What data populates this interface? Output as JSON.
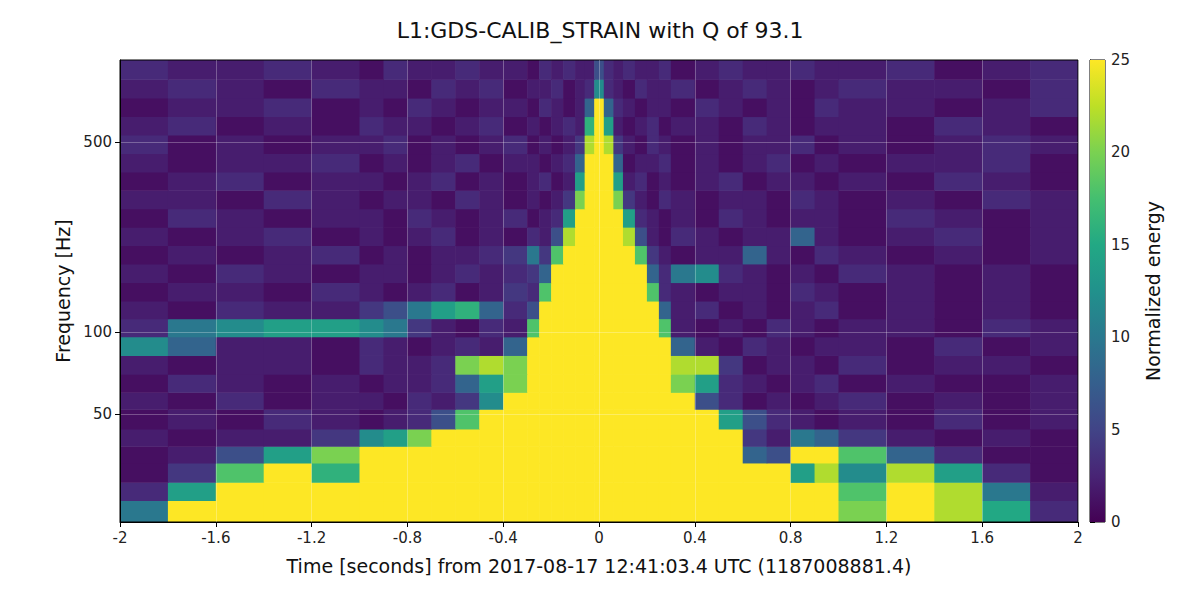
{
  "chart_data": {
    "type": "heatmap",
    "title": "L1:GDS-CALIB_STRAIN with Q of 93.1",
    "x_label": "Time [seconds] from 2017-08-17 12:41:03.4 UTC (1187008881.4)",
    "y_label": "Frequency [Hz]",
    "log": "y",
    "grid": true,
    "xlim": [
      -2,
      2
    ],
    "xticks": [
      -2,
      -1.6,
      -1.2,
      -0.8,
      -0.4,
      0,
      0.4,
      0.8,
      1.2,
      1.6,
      2
    ],
    "ylim": [
      20,
      1000
    ],
    "yticks": [
      50,
      100,
      500
    ],
    "x_edges": [
      -2.0,
      -1.8,
      -1.6,
      -1.4,
      -1.2,
      -1.0,
      -0.9,
      -0.8,
      -0.7,
      -0.6,
      -0.5,
      -0.4,
      -0.3,
      -0.25,
      -0.2,
      -0.15,
      -0.1,
      -0.06,
      -0.02,
      0.02,
      0.06,
      0.1,
      0.15,
      0.2,
      0.25,
      0.3,
      0.4,
      0.5,
      0.6,
      0.7,
      0.8,
      0.9,
      1.0,
      1.2,
      1.4,
      1.6,
      1.8,
      2.0
    ],
    "y_edges": [
      20,
      24,
      28,
      33,
      38,
      44,
      52,
      60,
      70,
      82,
      96,
      112,
      130,
      152,
      178,
      208,
      243,
      284,
      332,
      388,
      453,
      530,
      620,
      725,
      850,
      1000
    ],
    "cells": [
      [
        10,
        25,
        25,
        25,
        25,
        25,
        25,
        25,
        25,
        25,
        25,
        25,
        25,
        25,
        25,
        25,
        25,
        25,
        25,
        25,
        25,
        25,
        25,
        25,
        25,
        25,
        25,
        25,
        25,
        25,
        25,
        25,
        20,
        25,
        22,
        15,
        3
      ],
      [
        3,
        14,
        25,
        25,
        25,
        25,
        25,
        25,
        25,
        25,
        25,
        25,
        25,
        25,
        25,
        25,
        25,
        25,
        25,
        25,
        25,
        25,
        25,
        25,
        25,
        25,
        25,
        25,
        25,
        25,
        25,
        25,
        18,
        25,
        22,
        10,
        2
      ],
      [
        1,
        4,
        18,
        25,
        16,
        25,
        25,
        25,
        25,
        25,
        25,
        25,
        25,
        25,
        25,
        25,
        25,
        25,
        25,
        25,
        25,
        25,
        25,
        25,
        25,
        25,
        25,
        25,
        25,
        25,
        14,
        22,
        12,
        22,
        14,
        3,
        1
      ],
      [
        1,
        2,
        6,
        14,
        20,
        25,
        25,
        25,
        25,
        25,
        25,
        25,
        25,
        25,
        25,
        25,
        25,
        25,
        25,
        25,
        25,
        25,
        25,
        25,
        25,
        25,
        25,
        25,
        8,
        6,
        25,
        25,
        18,
        8,
        3,
        1,
        1
      ],
      [
        2,
        1,
        2,
        2,
        4,
        12,
        14,
        20,
        25,
        25,
        25,
        25,
        25,
        25,
        25,
        25,
        25,
        25,
        25,
        25,
        25,
        25,
        25,
        25,
        25,
        25,
        25,
        25,
        4,
        2,
        10,
        8,
        4,
        2,
        1,
        2,
        1
      ],
      [
        1,
        2,
        1,
        3,
        2,
        1,
        2,
        3,
        6,
        18,
        25,
        25,
        25,
        25,
        25,
        25,
        25,
        25,
        25,
        25,
        25,
        25,
        25,
        25,
        25,
        25,
        25,
        14,
        6,
        3,
        2,
        1,
        2,
        1,
        3,
        1,
        2
      ],
      [
        2,
        1,
        3,
        1,
        2,
        2,
        1,
        3,
        2,
        4,
        12,
        25,
        25,
        25,
        25,
        25,
        25,
        25,
        25,
        25,
        25,
        25,
        25,
        25,
        25,
        25,
        6,
        3,
        1,
        2,
        1,
        2,
        3,
        1,
        2,
        1,
        2
      ],
      [
        1,
        3,
        2,
        1,
        2,
        1,
        2,
        2,
        3,
        8,
        14,
        20,
        25,
        25,
        25,
        25,
        25,
        25,
        25,
        25,
        25,
        25,
        25,
        25,
        25,
        20,
        14,
        3,
        2,
        1,
        2,
        3,
        1,
        2,
        1,
        1,
        2
      ],
      [
        2,
        1,
        2,
        2,
        1,
        3,
        2,
        2,
        3,
        20,
        22,
        20,
        25,
        25,
        25,
        25,
        25,
        25,
        25,
        25,
        25,
        25,
        25,
        25,
        25,
        22,
        22,
        4,
        1,
        2,
        2,
        1,
        3,
        1,
        2,
        2,
        1
      ],
      [
        12,
        8,
        2,
        2,
        1,
        3,
        2,
        1,
        2,
        3,
        2,
        8,
        25,
        25,
        25,
        25,
        25,
        25,
        25,
        25,
        25,
        25,
        25,
        25,
        25,
        8,
        2,
        1,
        3,
        2,
        1,
        2,
        2,
        1,
        3,
        1,
        2
      ],
      [
        3,
        10,
        12,
        14,
        14,
        12,
        10,
        4,
        2,
        1,
        3,
        2,
        18,
        25,
        25,
        25,
        25,
        25,
        25,
        25,
        25,
        25,
        25,
        25,
        18,
        2,
        1,
        2,
        1,
        3,
        2,
        1,
        2,
        2,
        1,
        3,
        2
      ],
      [
        2,
        1,
        3,
        2,
        2,
        4,
        6,
        10,
        14,
        16,
        8,
        3,
        6,
        25,
        25,
        25,
        25,
        25,
        25,
        25,
        25,
        25,
        25,
        25,
        8,
        2,
        3,
        1,
        2,
        1,
        2,
        3,
        1,
        2,
        1,
        2,
        1
      ],
      [
        1,
        2,
        2,
        1,
        3,
        2,
        1,
        2,
        3,
        1,
        2,
        4,
        3,
        18,
        25,
        25,
        25,
        25,
        25,
        25,
        25,
        25,
        25,
        18,
        3,
        2,
        1,
        2,
        2,
        1,
        3,
        2,
        1,
        2,
        1,
        2,
        1
      ],
      [
        2,
        1,
        3,
        2,
        1,
        2,
        2,
        1,
        2,
        3,
        2,
        3,
        4,
        8,
        25,
        25,
        25,
        25,
        25,
        25,
        25,
        25,
        25,
        8,
        3,
        10,
        12,
        3,
        2,
        1,
        2,
        1,
        3,
        2,
        1,
        2,
        1
      ],
      [
        1,
        2,
        1,
        2,
        3,
        1,
        2,
        1,
        2,
        2,
        3,
        4,
        10,
        4,
        18,
        25,
        25,
        25,
        25,
        25,
        25,
        25,
        18,
        4,
        2,
        1,
        2,
        2,
        8,
        2,
        1,
        3,
        2,
        1,
        2,
        1,
        2
      ],
      [
        2,
        1,
        2,
        3,
        1,
        2,
        1,
        2,
        3,
        1,
        2,
        1,
        3,
        2,
        6,
        22,
        25,
        25,
        25,
        25,
        25,
        22,
        6,
        2,
        1,
        3,
        2,
        1,
        2,
        2,
        8,
        2,
        1,
        2,
        3,
        1,
        2
      ],
      [
        1,
        3,
        2,
        1,
        2,
        2,
        1,
        3,
        2,
        1,
        2,
        3,
        1,
        2,
        3,
        14,
        25,
        25,
        25,
        25,
        25,
        14,
        3,
        2,
        1,
        2,
        1,
        3,
        2,
        1,
        2,
        2,
        1,
        3,
        2,
        1,
        2
      ],
      [
        2,
        2,
        1,
        3,
        2,
        1,
        2,
        2,
        1,
        3,
        2,
        1,
        2,
        1,
        2,
        4,
        20,
        25,
        25,
        25,
        20,
        4,
        2,
        1,
        3,
        2,
        1,
        2,
        2,
        1,
        3,
        2,
        1,
        2,
        1,
        3,
        2
      ],
      [
        1,
        2,
        3,
        1,
        2,
        2,
        1,
        2,
        3,
        1,
        2,
        1,
        2,
        3,
        1,
        2,
        14,
        25,
        25,
        25,
        14,
        2,
        3,
        1,
        2,
        1,
        2,
        3,
        1,
        2,
        2,
        1,
        2,
        1,
        3,
        2,
        1
      ],
      [
        2,
        1,
        2,
        2,
        3,
        1,
        2,
        1,
        2,
        3,
        1,
        2,
        2,
        1,
        2,
        3,
        8,
        25,
        25,
        25,
        8,
        1,
        2,
        2,
        3,
        1,
        2,
        1,
        2,
        3,
        1,
        2,
        1,
        2,
        2,
        3,
        1
      ],
      [
        3,
        1,
        2,
        1,
        2,
        2,
        3,
        1,
        2,
        1,
        2,
        3,
        1,
        2,
        1,
        2,
        4,
        22,
        25,
        22,
        4,
        2,
        1,
        3,
        2,
        1,
        2,
        1,
        2,
        2,
        3,
        1,
        2,
        1,
        2,
        3,
        2
      ],
      [
        2,
        3,
        1,
        2,
        1,
        3,
        2,
        2,
        1,
        2,
        3,
        1,
        2,
        1,
        2,
        3,
        2,
        16,
        25,
        14,
        2,
        1,
        2,
        3,
        1,
        2,
        2,
        1,
        3,
        2,
        1,
        2,
        2,
        1,
        3,
        2,
        1
      ],
      [
        1,
        2,
        2,
        3,
        1,
        2,
        1,
        3,
        2,
        1,
        2,
        2,
        1,
        3,
        2,
        1,
        2,
        8,
        25,
        8,
        3,
        2,
        1,
        2,
        2,
        1,
        3,
        2,
        1,
        2,
        1,
        3,
        2,
        2,
        1,
        2,
        3
      ],
      [
        2,
        3,
        2,
        1,
        3,
        2,
        2,
        1,
        3,
        2,
        3,
        1,
        2,
        2,
        3,
        1,
        2,
        3,
        12,
        3,
        2,
        1,
        3,
        2,
        2,
        3,
        1,
        2,
        3,
        2,
        1,
        2,
        3,
        2,
        2,
        1,
        3
      ],
      [
        3,
        2,
        2,
        3,
        2,
        1,
        3,
        2,
        2,
        3,
        2,
        2,
        1,
        3,
        2,
        3,
        2,
        2,
        6,
        3,
        2,
        3,
        2,
        2,
        3,
        1,
        2,
        3,
        2,
        2,
        3,
        2,
        2,
        3,
        1,
        2,
        3
      ]
    ],
    "colorbar": {
      "label": "Normalized energy",
      "range": [
        0,
        25
      ],
      "ticks": [
        0,
        5,
        10,
        15,
        20,
        25
      ]
    }
  }
}
